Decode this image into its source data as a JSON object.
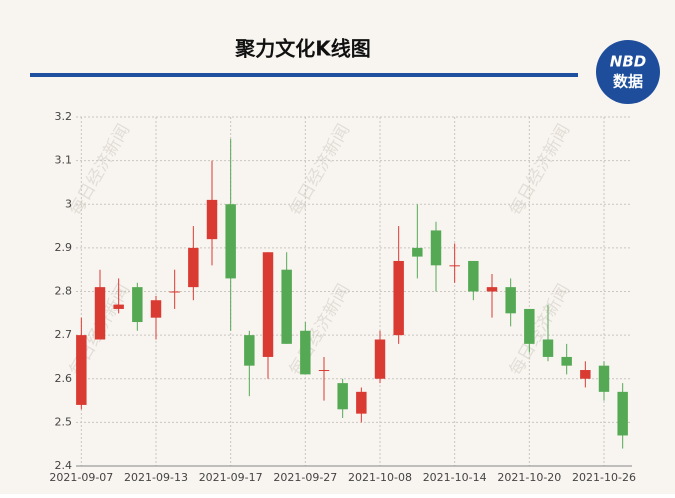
{
  "chart_data": {
    "type": "candlestick",
    "title": "聚力文化K线图",
    "logo": {
      "top": "NBD",
      "bottom": "数据"
    },
    "watermark": "每日经济新闻",
    "categories": [
      "2021-09-07",
      null,
      null,
      null,
      "2021-09-13",
      null,
      null,
      null,
      "2021-09-17",
      null,
      null,
      null,
      "2021-09-27",
      null,
      null,
      null,
      "2021-10-08",
      null,
      null,
      null,
      "2021-10-14",
      null,
      null,
      null,
      "2021-10-20",
      null,
      null,
      null,
      "2021-10-26",
      null
    ],
    "open": [
      2.54,
      2.69,
      2.76,
      2.81,
      2.74,
      2.8,
      2.81,
      2.92,
      3.0,
      2.7,
      2.65,
      2.85,
      2.71,
      2.62,
      2.59,
      2.52,
      2.6,
      2.7,
      2.9,
      2.94,
      2.86,
      2.87,
      2.8,
      2.81,
      2.76,
      2.69,
      2.65,
      2.6,
      2.63,
      2.57
    ],
    "high": [
      2.74,
      2.85,
      2.83,
      2.82,
      2.79,
      2.85,
      2.95,
      3.1,
      3.15,
      2.71,
      2.89,
      2.89,
      2.73,
      2.65,
      2.6,
      2.58,
      2.71,
      2.95,
      3.0,
      2.96,
      2.91,
      2.87,
      2.84,
      2.83,
      2.76,
      2.77,
      2.68,
      2.64,
      2.64,
      2.59
    ],
    "low": [
      2.53,
      2.69,
      2.75,
      2.71,
      2.69,
      2.76,
      2.78,
      2.86,
      2.71,
      2.56,
      2.6,
      2.68,
      2.61,
      2.55,
      2.51,
      2.5,
      2.59,
      2.68,
      2.83,
      2.8,
      2.82,
      2.78,
      2.74,
      2.72,
      2.66,
      2.64,
      2.61,
      2.58,
      2.55,
      2.44
    ],
    "close": [
      2.7,
      2.81,
      2.77,
      2.73,
      2.78,
      2.8,
      2.9,
      3.01,
      2.83,
      2.63,
      2.89,
      2.68,
      2.61,
      2.62,
      2.53,
      2.57,
      2.69,
      2.87,
      2.88,
      2.86,
      2.86,
      2.8,
      2.81,
      2.75,
      2.68,
      2.65,
      2.63,
      2.62,
      2.57,
      2.47
    ],
    "up_color": "#d93a32",
    "down_color": "#55a955",
    "ylim": [
      2.4,
      3.2
    ],
    "yticks": [
      2.4,
      2.5,
      2.6,
      2.7,
      2.8,
      2.9,
      3,
      3.1,
      3.2
    ],
    "grid": true
  }
}
